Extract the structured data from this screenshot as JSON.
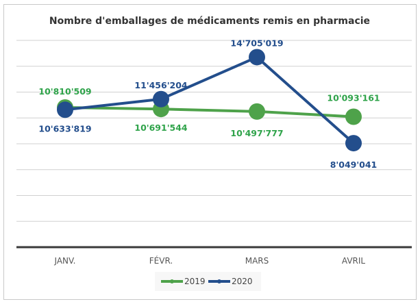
{
  "chart_data": {
    "type": "line",
    "title": "Nombre d'emballages de médicaments remis en pharmacie",
    "categories": [
      "JANV.",
      "FÉVR.",
      "MARS",
      "AVRIL"
    ],
    "ylim": [
      0,
      16000000
    ],
    "grid": true,
    "legend": "bottom",
    "series": [
      {
        "name": "2019",
        "color": "#4ea24a",
        "label_color": "#2fa34a",
        "values": [
          10810509,
          10691544,
          10497777,
          10093161
        ],
        "labels": [
          "10'810'509",
          "10'691'544",
          "10'497'777",
          "10'093'161"
        ]
      },
      {
        "name": "2020",
        "color": "#234e8c",
        "label_color": "#234e8c",
        "values": [
          10633819,
          11456204,
          14705019,
          8049041
        ],
        "labels": [
          "10'633'819",
          "11'456'204",
          "14'705'019",
          "8'049'041"
        ]
      }
    ]
  }
}
